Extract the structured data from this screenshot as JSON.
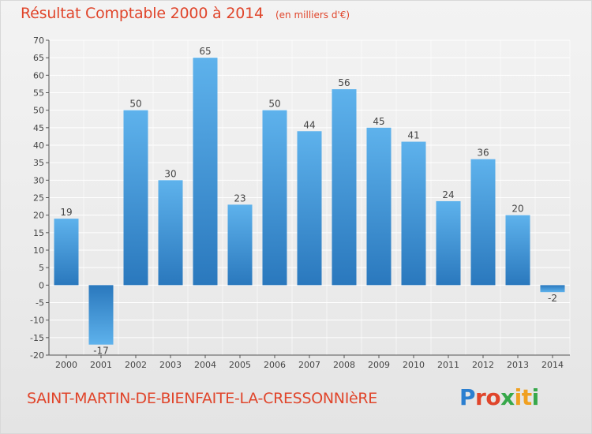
{
  "header": {
    "title": "Résultat Comptable 2000 à 2014",
    "subtitle": "(en milliers d'€)"
  },
  "footer": {
    "commune": "SAINT-MARTIN-DE-BIENFAITE-LA-CRESSONNIèRE",
    "brand": "Proxiti"
  },
  "colors": {
    "title": "#e0452b",
    "bar_light": "#5aaeea",
    "bar_dark": "#2a7bc0",
    "grid": "#ffffff"
  },
  "chart_data": {
    "type": "bar",
    "title": "Résultat Comptable 2000 à 2014",
    "xlabel": "",
    "ylabel": "",
    "categories": [
      "2000",
      "2001",
      "2002",
      "2003",
      "2004",
      "2005",
      "2006",
      "2007",
      "2008",
      "2009",
      "2010",
      "2011",
      "2012",
      "2013",
      "2014"
    ],
    "values": [
      19,
      -17,
      50,
      30,
      65,
      23,
      50,
      44,
      56,
      45,
      41,
      24,
      36,
      20,
      -2
    ],
    "ylim": [
      -20,
      70
    ],
    "yticks": [
      -20,
      -15,
      -10,
      -5,
      0,
      5,
      10,
      15,
      20,
      25,
      30,
      35,
      40,
      45,
      50,
      55,
      60,
      65,
      70
    ],
    "grid": true
  }
}
